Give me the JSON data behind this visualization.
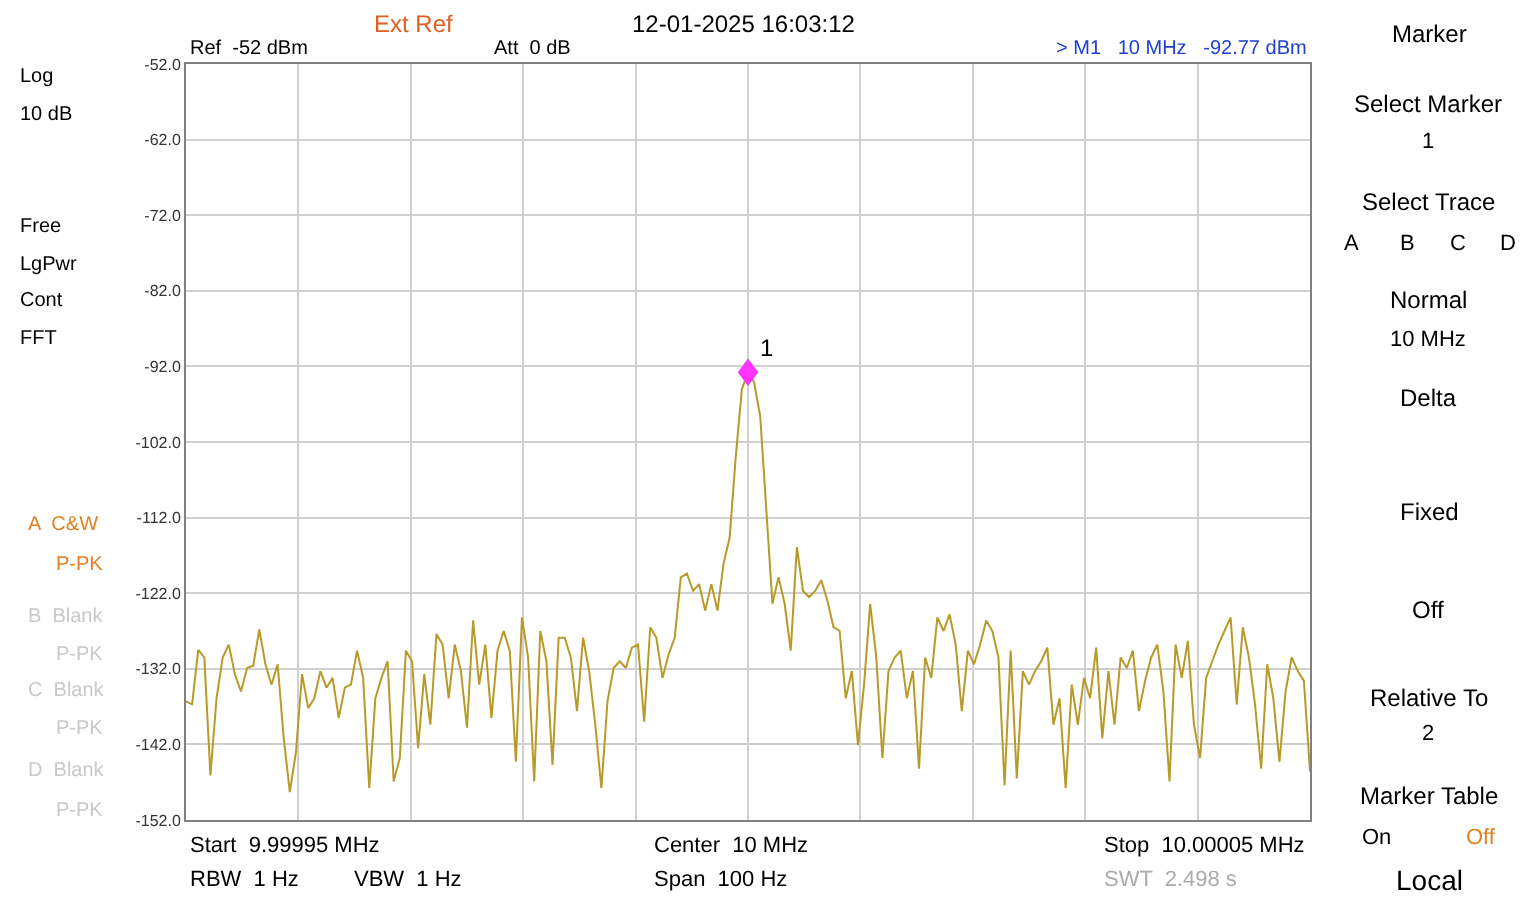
{
  "chart_data": {
    "type": "line",
    "ylim": [
      -152,
      -52
    ],
    "categories": [
      null,
      null,
      null,
      null,
      null,
      null,
      null,
      null,
      null,
      null,
      null,
      null,
      null,
      null,
      null,
      null,
      null,
      null,
      null,
      null,
      null,
      null,
      null,
      null,
      null,
      null,
      null,
      null,
      null,
      null,
      null,
      null,
      null,
      null,
      null,
      null,
      null,
      null,
      null,
      null,
      null,
      null,
      null,
      null,
      null,
      null,
      null,
      null,
      null,
      null,
      null,
      null,
      null,
      null,
      null,
      null,
      null,
      null,
      null,
      null,
      null,
      null,
      null,
      null,
      null,
      null,
      null,
      null,
      null,
      null,
      null,
      null,
      null,
      null,
      null,
      null,
      null,
      null,
      null,
      null,
      null,
      null,
      null,
      null,
      null,
      null,
      null,
      null,
      null,
      null,
      null,
      null,
      null,
      null,
      null,
      null,
      null,
      null,
      null,
      null,
      null,
      null,
      null,
      null,
      null,
      null,
      null,
      null,
      null,
      null,
      null,
      null,
      null,
      null,
      null,
      null,
      null,
      null,
      null,
      null,
      null,
      null,
      null,
      null,
      null,
      null,
      null,
      null,
      null,
      null,
      null,
      null,
      null,
      null,
      null,
      null,
      null,
      null,
      null,
      null,
      null,
      null,
      null,
      null,
      null,
      null,
      null,
      null,
      null,
      null,
      null,
      null,
      null,
      null,
      null,
      null,
      null,
      null,
      null,
      null,
      null,
      null,
      null,
      null,
      null,
      null,
      null,
      null,
      null,
      null,
      null,
      null,
      null,
      null,
      null,
      null,
      null,
      null,
      null,
      null,
      null,
      null,
      null,
      null,
      null
    ],
    "yticks": [
      {
        "value": -52,
        "label": "-52.0"
      },
      {
        "value": -62,
        "label": "-62.0"
      },
      {
        "value": -72,
        "label": "-72.0"
      },
      {
        "value": -82,
        "label": "-82.0"
      },
      {
        "value": -92,
        "label": "-92.0"
      },
      {
        "value": -102,
        "label": "-102.0"
      },
      {
        "value": -112,
        "label": "-112.0"
      },
      {
        "value": -122,
        "label": "-122.0"
      },
      {
        "value": -132,
        "label": "-132.0"
      },
      {
        "value": -142,
        "label": "-142.0"
      },
      {
        "value": -152,
        "label": "-152.0"
      }
    ],
    "tick_labels": "y",
    "grid": true,
    "line_style": "solid",
    "series": [
      {
        "color": "#b89a28",
        "values": [
          -136.3,
          -136.7,
          -129.5,
          -130.5,
          -146.1,
          -135.9,
          -130.5,
          -128.8,
          -132.7,
          -135.0,
          -131.9,
          -131.6,
          -126.8,
          -131.4,
          -134.1,
          -131.4,
          -141.2,
          -148.3,
          -143.0,
          -132.7,
          -137.2,
          -135.9,
          -132.3,
          -134.5,
          -133.2,
          -138.5,
          -134.5,
          -134.1,
          -129.6,
          -133.2,
          -147.8,
          -135.9,
          -133.2,
          -131.0,
          -146.9,
          -143.8,
          -129.6,
          -131.0,
          -142.5,
          -132.7,
          -139.4,
          -127.4,
          -128.8,
          -135.9,
          -128.8,
          -132.3,
          -139.8,
          -125.6,
          -134.1,
          -128.8,
          -138.5,
          -129.6,
          -127.0,
          -129.6,
          -144.3,
          -125.2,
          -130.5,
          -146.9,
          -127.0,
          -131.0,
          -144.7,
          -127.9,
          -127.9,
          -130.5,
          -137.6,
          -127.9,
          -132.3,
          -139.4,
          -147.8,
          -136.3,
          -131.9,
          -131.0,
          -131.9,
          -129.2,
          -128.8,
          -139.0,
          -126.5,
          -127.9,
          -133.2,
          -130.1,
          -127.9,
          -119.9,
          -119.4,
          -121.7,
          -120.8,
          -124.3,
          -120.8,
          -124.3,
          -118.1,
          -114.6,
          -103.9,
          -95.0,
          -92.77,
          -94.1,
          -98.6,
          -111.0,
          -123.4,
          -119.9,
          -123.4,
          -129.6,
          -115.9,
          -121.7,
          -122.5,
          -121.7,
          -120.3,
          -123.0,
          -126.5,
          -127.0,
          -135.9,
          -132.3,
          -142.1,
          -134.1,
          -123.4,
          -130.5,
          -143.8,
          -132.3,
          -130.5,
          -129.6,
          -135.9,
          -132.3,
          -145.2,
          -130.5,
          -133.2,
          -125.2,
          -127.0,
          -124.8,
          -128.8,
          -137.6,
          -129.6,
          -131.4,
          -128.8,
          -125.6,
          -127.0,
          -130.5,
          -147.4,
          -129.6,
          -146.5,
          -132.3,
          -134.1,
          -132.3,
          -131.0,
          -129.2,
          -139.4,
          -135.9,
          -147.8,
          -134.1,
          -139.4,
          -133.2,
          -135.9,
          -129.2,
          -141.2,
          -132.3,
          -139.4,
          -130.5,
          -131.9,
          -129.6,
          -137.6,
          -133.6,
          -130.5,
          -128.8,
          -135.0,
          -146.9,
          -128.8,
          -133.2,
          -128.3,
          -139.4,
          -143.8,
          -133.2,
          -131.0,
          -128.8,
          -127.0,
          -125.2,
          -136.7,
          -126.5,
          -130.5,
          -136.7,
          -145.2,
          -131.4,
          -135.9,
          -144.3,
          -135.0,
          -130.5,
          -132.3,
          -133.6,
          -145.6
        ]
      }
    ],
    "annotations": [
      "Ext Ref",
      "12-01-2025 16:03:12",
      "Ref  -52 dBm",
      "Att  0 dB",
      "> M1   10 MHz   -92.77 dBm",
      "Log",
      "10 dB",
      "Free",
      "LgPwr",
      "Cont",
      "FFT",
      "A  C&W",
      "P-PK",
      "B  Blank",
      "P-PK",
      "C  Blank",
      "P-PK",
      "D  Blank",
      "P-PK",
      "Start  9.99995 MHz",
      "Center  10 MHz",
      "Stop  10.00005 MHz",
      "RBW  1 Hz",
      "VBW  1 Hz",
      "Span  100 Hz",
      "SWT  2.498 s",
      "Marker",
      "Select Marker",
      "1",
      "Select Trace",
      "A",
      "B",
      "C",
      "D",
      "Normal",
      "10 MHz",
      "Delta",
      "Fixed",
      "Off",
      "Relative To",
      "2",
      "Marker Table",
      "On",
      "Off",
      "Local",
      {
        "text": "1",
        "y": -92.77
      }
    ]
  }
}
